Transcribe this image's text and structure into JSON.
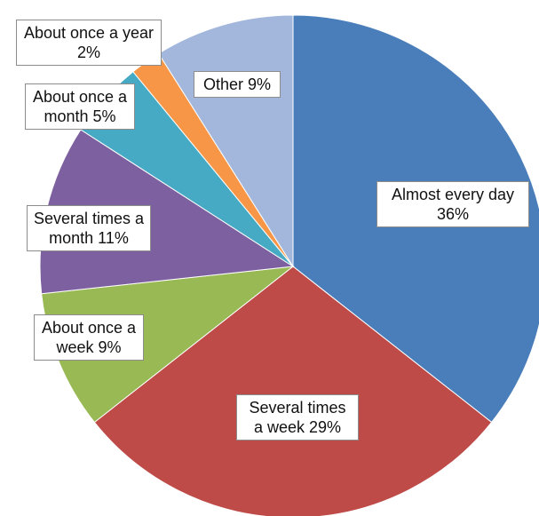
{
  "chart_data": {
    "type": "pie",
    "categories": [
      "Almost every day",
      "Several times a week",
      "About once a week",
      "Several times a month",
      "About once a month",
      "About once a year",
      "Other"
    ],
    "values": [
      36,
      29,
      9,
      11,
      5,
      2,
      9
    ],
    "value_labels": [
      "36%",
      "29%",
      "9%",
      "11%",
      "5%",
      "2%",
      "9%"
    ],
    "colors": [
      "#4a7ebb",
      "#be4b48",
      "#98b954",
      "#7d60a0",
      "#46aac5",
      "#f79646",
      "#a3b7dd"
    ]
  }
}
